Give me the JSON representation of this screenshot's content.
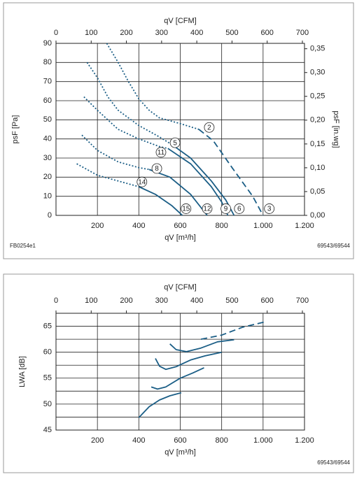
{
  "chart_data": [
    {
      "type": "line",
      "x_label": "qV [m³/h]",
      "x2_label": "qV [CFM]",
      "y_label": "psF [Pa]",
      "y2_label": "psF [in.wg]",
      "xlim": [
        0,
        1200
      ],
      "xticks": [
        200,
        400,
        600,
        800,
        {
          "value": 1000,
          "label": "1.000"
        },
        {
          "value": 1200,
          "label": "1.200"
        }
      ],
      "x2lim": [
        0,
        706
      ],
      "x2ticks": [
        0,
        100,
        200,
        300,
        400,
        500,
        600,
        700
      ],
      "ylim": [
        0,
        90
      ],
      "yticks": [
        0,
        10,
        20,
        30,
        40,
        50,
        60,
        70,
        80,
        90
      ],
      "y2lim": [
        0,
        0.3613
      ],
      "y2ticks": [
        {
          "value": 0,
          "label": "0,00"
        },
        {
          "value": 0.05,
          "label": "0,05"
        },
        {
          "value": 0.1,
          "label": "0,10"
        },
        {
          "value": 0.15,
          "label": "0,15"
        },
        {
          "value": 0.2,
          "label": "0,20"
        },
        {
          "value": 0.25,
          "label": "0,25"
        },
        {
          "value": 0.3,
          "label": "0,30"
        },
        {
          "value": 0.35,
          "label": "0,35"
        }
      ],
      "grid": true,
      "series": [
        {
          "color": "#1b5e86",
          "dash": "dotted",
          "x": [
            245,
            300,
            350,
            400,
            450,
            500,
            600,
            690
          ],
          "values": [
            90,
            80,
            70,
            61,
            55,
            51,
            48,
            45
          ]
        },
        {
          "color": "#1b5e86",
          "dash": "dashed",
          "x": [
            690,
            760,
            850,
            950,
            1000
          ],
          "values": [
            45,
            39,
            25,
            10,
            0
          ]
        },
        {
          "color": "#1b5e86",
          "dash": "dotted",
          "x": [
            150,
            200,
            250,
            300,
            400,
            500,
            560
          ],
          "values": [
            80,
            72,
            62,
            55,
            47,
            41,
            37
          ]
        },
        {
          "color": "#1b5e86",
          "dash": "solid",
          "x": [
            560,
            650,
            750,
            820,
            860
          ],
          "values": [
            37,
            30,
            18,
            8,
            0
          ]
        },
        {
          "color": "#1b5e86",
          "dash": "dotted",
          "x": [
            135,
            200,
            300,
            400,
            500,
            540
          ],
          "values": [
            62,
            55,
            45,
            40,
            36,
            35
          ]
        },
        {
          "color": "#1b5e86",
          "dash": "solid",
          "x": [
            540,
            650,
            750,
            800,
            830
          ],
          "values": [
            35,
            27,
            15,
            7,
            0
          ]
        },
        {
          "color": "#1b5e86",
          "dash": "dotted",
          "x": [
            125,
            200,
            300,
            400,
            450
          ],
          "values": [
            42,
            34,
            28,
            25,
            24
          ]
        },
        {
          "color": "#1b5e86",
          "dash": "solid",
          "x": [
            450,
            550,
            650,
            730
          ],
          "values": [
            24,
            20,
            11,
            0
          ]
        },
        {
          "color": "#1b5e86",
          "dash": "dotted",
          "x": [
            100,
            200,
            300,
            400
          ],
          "values": [
            27,
            21,
            18,
            15
          ]
        },
        {
          "color": "#1b5e86",
          "dash": "solid",
          "x": [
            400,
            480,
            560,
            610
          ],
          "values": [
            15,
            11,
            5,
            0
          ]
        }
      ],
      "annotations": [
        {
          "text": "2",
          "x": 740,
          "y": 46
        },
        {
          "text": "5",
          "x": 575,
          "y": 38
        },
        {
          "text": "11",
          "x": 507,
          "y": 33
        },
        {
          "text": "8",
          "x": 487,
          "y": 24.5
        },
        {
          "text": "14",
          "x": 415,
          "y": 17.5
        },
        {
          "text": "15",
          "x": 628,
          "y": 3.5
        },
        {
          "text": "12",
          "x": 730,
          "y": 3.5
        },
        {
          "text": "9",
          "x": 820,
          "y": 3.5
        },
        {
          "text": "6",
          "x": 885,
          "y": 3.5
        },
        {
          "text": "3",
          "x": 1030,
          "y": 3.5
        }
      ],
      "code": "FB0254e1",
      "id": "69543/69544"
    },
    {
      "type": "line",
      "x_label": "qV [m³/h]",
      "x2_label": "qV [CFM]",
      "y_label": "LWA [dB]",
      "xlim": [
        0,
        1200
      ],
      "xticks": [
        200,
        400,
        600,
        800,
        {
          "value": 1000,
          "label": "1.000"
        },
        {
          "value": 1200,
          "label": "1.200"
        }
      ],
      "x2lim": [
        0,
        706
      ],
      "x2ticks": [
        0,
        100,
        200,
        300,
        400,
        500,
        600,
        700
      ],
      "ylim": [
        45,
        67.5
      ],
      "yticks": [
        45,
        50,
        55,
        60,
        65
      ],
      "yminorticks": [
        47.5,
        52.5,
        57.5,
        62.5,
        67.5
      ],
      "grid": true,
      "series": [
        {
          "color": "#1b5e86",
          "dash": "solid",
          "x": [
            400,
            450,
            500,
            550,
            605
          ],
          "values": [
            47.4,
            49.5,
            50.8,
            51.6,
            52.2
          ]
        },
        {
          "color": "#1b5e86",
          "dash": "solid",
          "x": [
            460,
            490,
            530,
            600,
            660,
            715
          ],
          "values": [
            53.3,
            52.9,
            53.3,
            55,
            56,
            57
          ]
        },
        {
          "color": "#1b5e86",
          "dash": "solid",
          "x": [
            480,
            500,
            530,
            580,
            650,
            720,
            800
          ],
          "values": [
            58.8,
            57.3,
            56.7,
            57.2,
            58.5,
            59.3,
            60
          ]
        },
        {
          "color": "#1b5e86",
          "dash": "solid",
          "x": [
            550,
            580,
            630,
            700,
            780,
            860
          ],
          "values": [
            61.6,
            60.5,
            60.1,
            60.8,
            62,
            62.4
          ]
        },
        {
          "color": "#1b5e86",
          "dash": "dashed",
          "x": [
            700,
            800,
            900,
            1005
          ],
          "values": [
            62.5,
            63.3,
            64.8,
            65.8
          ]
        }
      ],
      "id": "69543/69544"
    }
  ]
}
